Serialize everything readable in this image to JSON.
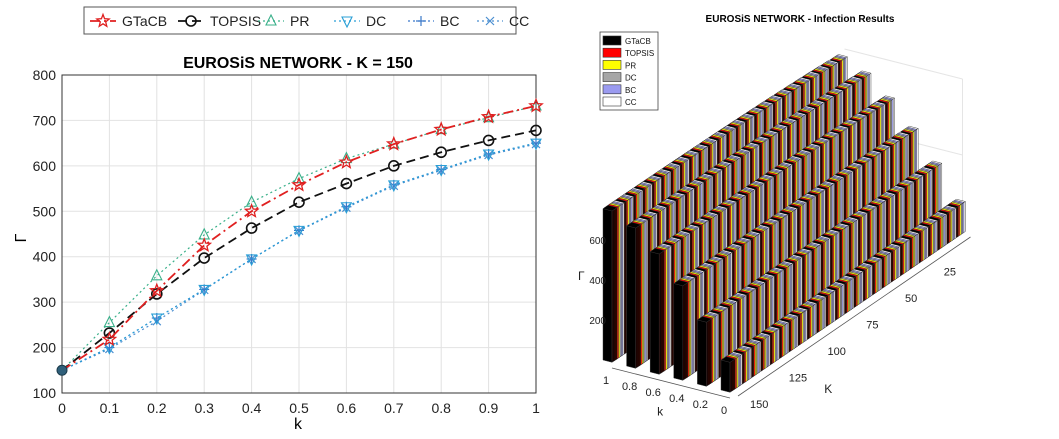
{
  "charts": [
    {
      "type": "line",
      "title": "EUROSiS NETWORK - K = 150",
      "xlabel": "k",
      "ylabel": "Γ",
      "xlim": [
        0,
        1
      ],
      "ylim": [
        100,
        800
      ],
      "x_ticks": [
        "0",
        "0.1",
        "0.2",
        "0.3",
        "0.4",
        "0.5",
        "0.6",
        "0.7",
        "0.8",
        "0.9",
        "1"
      ],
      "y_ticks": [
        "100",
        "200",
        "300",
        "400",
        "500",
        "600",
        "700",
        "800"
      ],
      "grid": true,
      "legend_position": "top",
      "x": [
        0,
        0.1,
        0.2,
        0.3,
        0.4,
        0.5,
        0.6,
        0.7,
        0.8,
        0.9,
        1.0
      ],
      "series": [
        {
          "name": "GTaCB",
          "color": "#e02020",
          "marker": "star",
          "dash": "10 4 2 4",
          "values": [
            150,
            218,
            325,
            425,
            500,
            558,
            608,
            648,
            680,
            708,
            732
          ]
        },
        {
          "name": "TOPSIS",
          "color": "#111111",
          "marker": "circle",
          "dash": "9 5",
          "values": [
            150,
            232,
            318,
            397,
            463,
            520,
            561,
            600,
            630,
            656,
            678
          ]
        },
        {
          "name": "PR",
          "color": "#3ab08a",
          "marker": "triangle-up",
          "dash": "2 3",
          "values": [
            150,
            255,
            358,
            448,
            520,
            572,
            616,
            648,
            680,
            706,
            732
          ]
        },
        {
          "name": "DC",
          "color": "#2a9fd6",
          "marker": "triangle-down",
          "dash": "2 3",
          "values": [
            150,
            200,
            265,
            328,
            395,
            458,
            510,
            558,
            592,
            626,
            650
          ]
        },
        {
          "name": "BC",
          "color": "#3a78c9",
          "marker": "plus",
          "dash": "2 3",
          "values": [
            150,
            200,
            265,
            328,
            395,
            458,
            510,
            558,
            592,
            626,
            650
          ]
        },
        {
          "name": "CC",
          "color": "#4b8fd1",
          "marker": "x",
          "dash": "2 3",
          "values": [
            150,
            197,
            258,
            327,
            395,
            457,
            508,
            556,
            590,
            624,
            648
          ]
        }
      ]
    },
    {
      "type": "bar3d",
      "title": "EUROSiS NETWORK -  Infection Results",
      "xlabel": "K",
      "ylabel": "k",
      "zlabel": "Γ",
      "K_ticks": [
        "25",
        "50",
        "75",
        "100",
        "125",
        "150"
      ],
      "k_ticks": [
        "1",
        "0.8",
        "0.6",
        "0.4",
        "0.2",
        "0"
      ],
      "z_ticks": [
        "200",
        "400",
        "600"
      ],
      "legend_position": "top-left",
      "K_values": [
        25,
        50,
        75,
        100,
        125,
        150
      ],
      "k_values": [
        0,
        0.2,
        0.4,
        0.6,
        0.8,
        1.0
      ],
      "approx_max_by_K": [
        720,
        740,
        745,
        740,
        735,
        732
      ],
      "series": [
        {
          "name": "GTaCB",
          "color": "#000000"
        },
        {
          "name": "TOPSIS",
          "color": "#ff0000"
        },
        {
          "name": "PR",
          "color": "#ffff00"
        },
        {
          "name": "DC",
          "color": "#a6a6a6"
        },
        {
          "name": "BC",
          "color": "#9b9bf0"
        },
        {
          "name": "CC",
          "color": "#ffffff"
        }
      ]
    }
  ]
}
